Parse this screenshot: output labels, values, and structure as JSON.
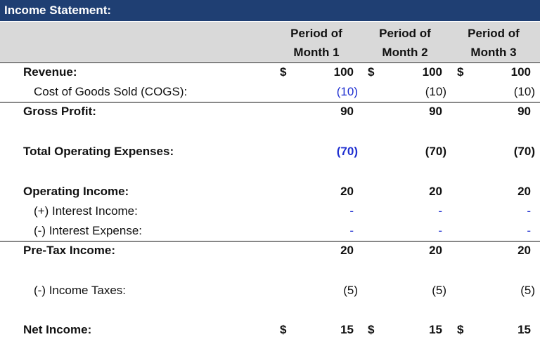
{
  "title": "Income Statement:",
  "columns": [
    {
      "line1": "Period of",
      "line2": "Month 1"
    },
    {
      "line1": "Period of",
      "line2": "Month 2"
    },
    {
      "line1": "Period of",
      "line2": "Month 3"
    }
  ],
  "currency_symbol": "$",
  "rows": {
    "revenue": {
      "label": "Revenue:",
      "values": [
        "100",
        "100",
        "100"
      ]
    },
    "cogs": {
      "label": "Cost of Goods Sold (COGS):",
      "values": [
        "(10)",
        "(10)",
        "(10)"
      ]
    },
    "gross_profit": {
      "label": "Gross Profit:",
      "values": [
        "90",
        "90",
        "90"
      ]
    },
    "opex": {
      "label": "Total Operating Expenses:",
      "values": [
        "(70)",
        "(70)",
        "(70)"
      ]
    },
    "operating_income": {
      "label": "Operating Income:",
      "values": [
        "20",
        "20",
        "20"
      ]
    },
    "interest_income": {
      "label": "(+) Interest Income:",
      "values": [
        "-",
        "-",
        "-"
      ]
    },
    "interest_expense": {
      "label": "(-) Interest Expense:",
      "values": [
        "-",
        "-",
        "-"
      ]
    },
    "pretax_income": {
      "label": "Pre-Tax Income:",
      "values": [
        "20",
        "20",
        "20"
      ]
    },
    "income_taxes": {
      "label": "(-) Income Taxes:",
      "values": [
        "(5)",
        "(5)",
        "(5)"
      ]
    },
    "net_income": {
      "label": "Net Income:",
      "values": [
        "15",
        "15",
        "15"
      ]
    }
  },
  "colors": {
    "header_bg": "#1f3f73",
    "subheader_bg": "#d9d9d9",
    "input_blue": "#1f2fd0"
  }
}
